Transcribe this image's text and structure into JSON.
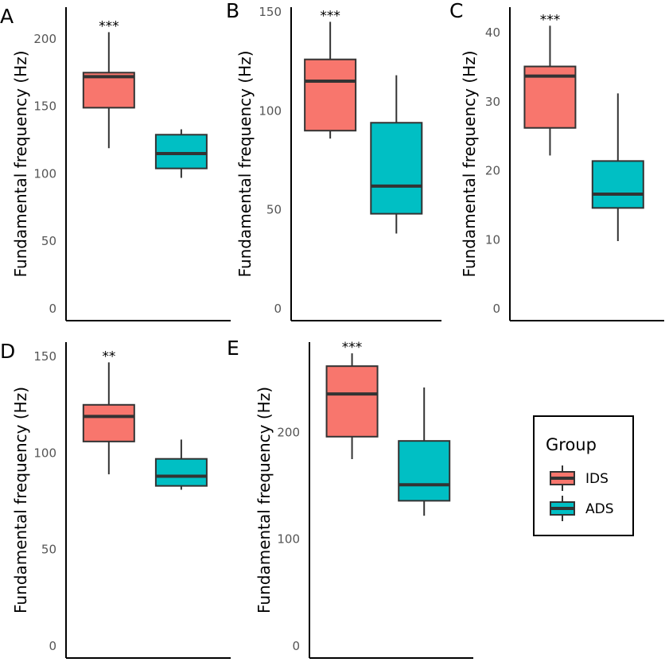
{
  "chart_data": [
    {
      "panel": "A",
      "type": "box",
      "ylabel": "Fundamental frequency (Hz)",
      "ylim": [
        0,
        220
      ],
      "yticks": [
        0,
        50,
        100,
        150,
        200
      ],
      "categories": [
        "IDS",
        "ADS"
      ],
      "significance": "***",
      "boxes": [
        {
          "group": "IDS",
          "min": 119,
          "q1": 149,
          "median": 172,
          "q3": 175,
          "max": 205
        },
        {
          "group": "ADS",
          "min": 97,
          "q1": 104,
          "median": 115,
          "q3": 129,
          "max": 133
        }
      ]
    },
    {
      "panel": "B",
      "type": "box",
      "ylabel": "Fundamental frequency (Hz)",
      "ylim": [
        0,
        150
      ],
      "yticks": [
        0,
        50,
        100,
        150
      ],
      "categories": [
        "IDS",
        "ADS"
      ],
      "significance": "***",
      "boxes": [
        {
          "group": "IDS",
          "min": 86,
          "q1": 90,
          "median": 115,
          "q3": 126,
          "max": 145
        },
        {
          "group": "ADS",
          "min": 38,
          "q1": 48,
          "median": 62,
          "q3": 94,
          "max": 118
        }
      ]
    },
    {
      "panel": "C",
      "type": "box",
      "ylabel": "Fundamental frequency (Hz)",
      "ylim": [
        0,
        43
      ],
      "yticks": [
        0,
        10,
        20,
        30,
        40
      ],
      "categories": [
        "IDS",
        "ADS"
      ],
      "significance": "***",
      "boxes": [
        {
          "group": "IDS",
          "min": 22.2,
          "q1": 26.2,
          "median": 33.7,
          "q3": 35.1,
          "max": 41
        },
        {
          "group": "ADS",
          "min": 9.8,
          "q1": 14.6,
          "median": 16.6,
          "q3": 21.4,
          "max": 31.2
        }
      ]
    },
    {
      "panel": "D",
      "type": "box",
      "ylabel": "Fundamental frequency (Hz)",
      "ylim": [
        0,
        155
      ],
      "yticks": [
        0,
        50,
        100,
        150
      ],
      "categories": [
        "IDS",
        "ADS"
      ],
      "significance": "**",
      "boxes": [
        {
          "group": "IDS",
          "min": 89,
          "q1": 106,
          "median": 119,
          "q3": 125,
          "max": 147
        },
        {
          "group": "ADS",
          "min": 81,
          "q1": 83,
          "median": 88,
          "q3": 97,
          "max": 107
        }
      ]
    },
    {
      "panel": "E",
      "type": "box",
      "ylabel": "Fundamental frequency (Hz)",
      "ylim": [
        0,
        280
      ],
      "yticks": [
        0,
        100,
        200
      ],
      "categories": [
        "IDS",
        "ADS"
      ],
      "significance": "***",
      "boxes": [
        {
          "group": "IDS",
          "min": 175,
          "q1": 196,
          "median": 236,
          "q3": 262,
          "max": 274
        },
        {
          "group": "ADS",
          "min": 122,
          "q1": 136,
          "median": 151,
          "q3": 192,
          "max": 242
        }
      ]
    }
  ],
  "legend": {
    "title": "Group",
    "position": "bottom-right",
    "items": [
      {
        "label": "IDS",
        "color": "#F8766D"
      },
      {
        "label": "ADS",
        "color": "#00BFC4"
      }
    ]
  },
  "colors": {
    "IDS": "#F8766D",
    "ADS": "#00BFC4"
  }
}
